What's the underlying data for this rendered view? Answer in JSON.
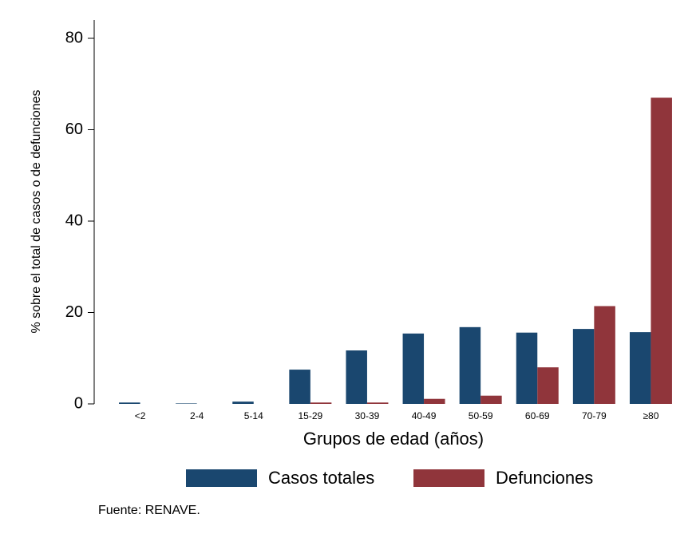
{
  "chart_data": {
    "type": "bar",
    "categories": [
      "<2",
      "2-4",
      "5-14",
      "15-29",
      "30-39",
      "40-49",
      "50-59",
      "60-69",
      "70-79",
      "≥80"
    ],
    "series": [
      {
        "name": "Casos totales",
        "color": "#1a476f",
        "values": [
          0.3,
          0.1,
          0.5,
          7.5,
          11.7,
          15.4,
          16.8,
          15.6,
          16.4,
          15.7
        ]
      },
      {
        "name": "Defunciones",
        "color": "#90353b",
        "values": [
          0,
          0,
          0,
          0.3,
          0.3,
          1.1,
          1.8,
          8.0,
          21.4,
          67.0
        ]
      }
    ],
    "ylim": [
      0,
      80
    ],
    "yticks": [
      0,
      20,
      40,
      60,
      80
    ],
    "y_label": "% sobre el total de casos o de defunciones",
    "x_label": "Grupos de edad (años)",
    "note": "Fuente: RENAVE.",
    "grid": false
  }
}
